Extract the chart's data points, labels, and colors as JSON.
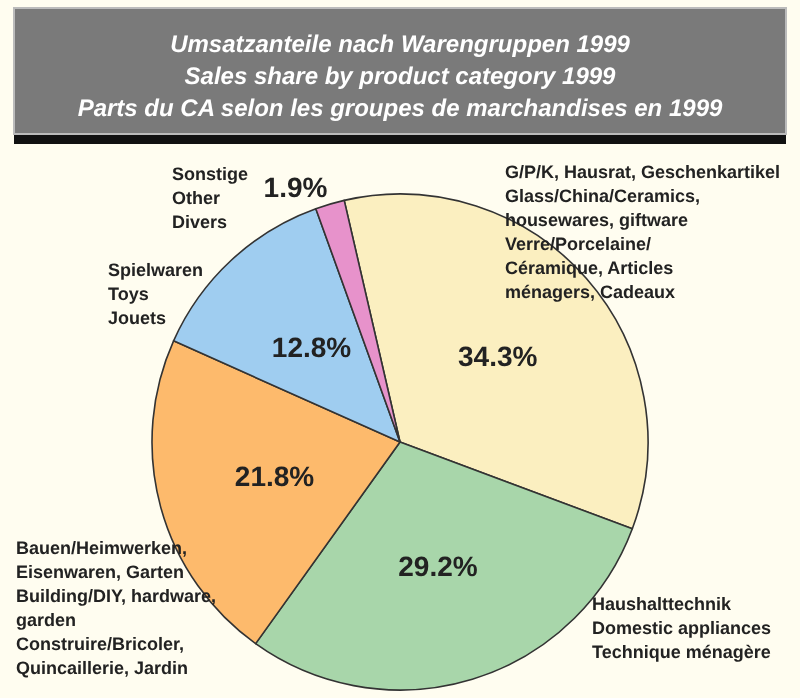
{
  "chart_data": {
    "type": "pie",
    "title": "Umsatzanteile nach Warengruppen 1999\nSales share by product category 1999\nParts du CA selon les groupes de marchandises en 1999",
    "categories": [
      "G/P/K, Hausrat, Geschenkartikel\nGlass/China/Ceramics,\nhousewares, giftware\nVerre/Porcelaine/\nCéramique, Articles\nménagers, Cadeaux",
      "Haushalttechnik\nDomestic appliances\nTechnique ménagère",
      "Bauen/Heimwerken,\nEisenwaren, Garten\nBuilding/DIY, hardware,\ngarden\nConstruire/Bricoler,\nQuincaillerie, Jardin",
      "Spielwaren\nToys\nJouets",
      "Sonstige\nOther\nDivers"
    ],
    "values": [
      34.3,
      29.2,
      21.8,
      12.8,
      1.9
    ],
    "colors": [
      "#fbefc0",
      "#a8d6aa",
      "#fdba6c",
      "#9fcdf0",
      "#e792cb"
    ],
    "value_labels": [
      "34.3%",
      "29.2%",
      "21.8%",
      "12.8%",
      "1.9%"
    ]
  }
}
